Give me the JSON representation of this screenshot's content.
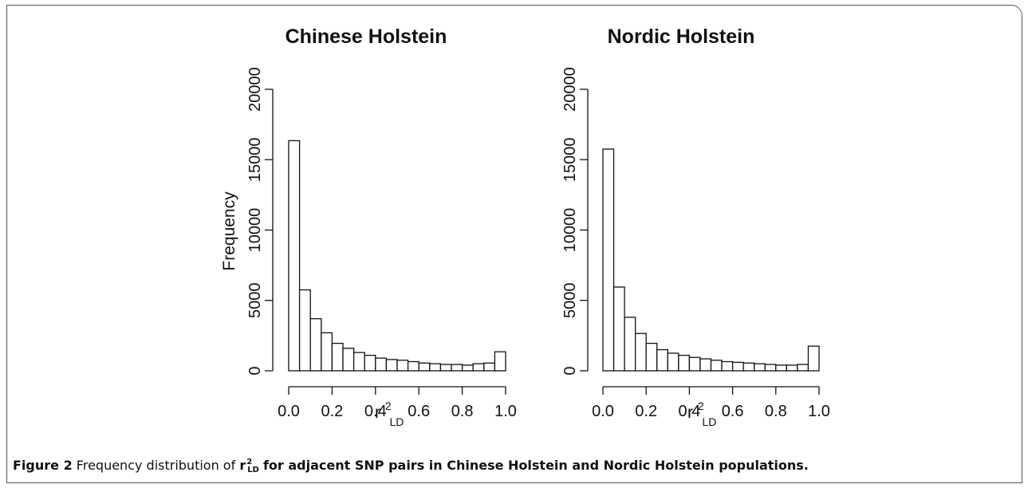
{
  "chart_data": [
    {
      "type": "bar",
      "title": "Chinese Holstein",
      "ylabel": "Frequency",
      "xlabel_base": "r",
      "xlabel_sup": "2",
      "xlabel_sub": "LD",
      "bin_width": 0.05,
      "x_range": [
        0,
        1
      ],
      "ylim": [
        0,
        20000
      ],
      "xticks": [
        "0.0",
        "0.2",
        "0.4",
        "0.6",
        "0.8",
        "1.0"
      ],
      "yticks": [
        "0",
        "5000",
        "10000",
        "15000",
        "20000"
      ],
      "bins": [
        "0.00-0.05",
        "0.05-0.10",
        "0.10-0.15",
        "0.15-0.20",
        "0.20-0.25",
        "0.25-0.30",
        "0.30-0.35",
        "0.35-0.40",
        "0.40-0.45",
        "0.45-0.50",
        "0.50-0.55",
        "0.55-0.60",
        "0.60-0.65",
        "0.65-0.70",
        "0.70-0.75",
        "0.75-0.80",
        "0.80-0.85",
        "0.85-0.90",
        "0.90-0.95",
        "0.95-1.00"
      ],
      "values": [
        16350,
        5750,
        3700,
        2700,
        1950,
        1600,
        1300,
        1100,
        900,
        800,
        750,
        650,
        550,
        500,
        450,
        450,
        400,
        500,
        550,
        1350
      ]
    },
    {
      "type": "bar",
      "title": "Nordic Holstein",
      "ylabel": "",
      "xlabel_base": "r",
      "xlabel_sup": "2",
      "xlabel_sub": "LD",
      "bin_width": 0.05,
      "x_range": [
        0,
        1
      ],
      "ylim": [
        0,
        20000
      ],
      "xticks": [
        "0.0",
        "0.2",
        "0.4",
        "0.6",
        "0.8",
        "1.0"
      ],
      "yticks": [
        "0",
        "5000",
        "10000",
        "15000",
        "20000"
      ],
      "bins": [
        "0.00-0.05",
        "0.05-0.10",
        "0.10-0.15",
        "0.15-0.20",
        "0.20-0.25",
        "0.25-0.30",
        "0.30-0.35",
        "0.35-0.40",
        "0.40-0.45",
        "0.45-0.50",
        "0.50-0.55",
        "0.55-0.60",
        "0.60-0.65",
        "0.65-0.70",
        "0.70-0.75",
        "0.75-0.80",
        "0.80-0.85",
        "0.85-0.90",
        "0.90-0.95",
        "0.95-1.00"
      ],
      "values": [
        15750,
        5950,
        3800,
        2650,
        1950,
        1500,
        1250,
        1100,
        950,
        850,
        750,
        650,
        600,
        550,
        500,
        450,
        400,
        400,
        450,
        1750
      ]
    }
  ],
  "caption": {
    "label": "Figure 2",
    "text_before": "Frequency distribution of",
    "symbol_base": "r",
    "symbol_sup": "2",
    "symbol_sub": "LD",
    "text_after": "for adjacent SNP pairs in Chinese Holstein and Nordic Holstein populations."
  }
}
